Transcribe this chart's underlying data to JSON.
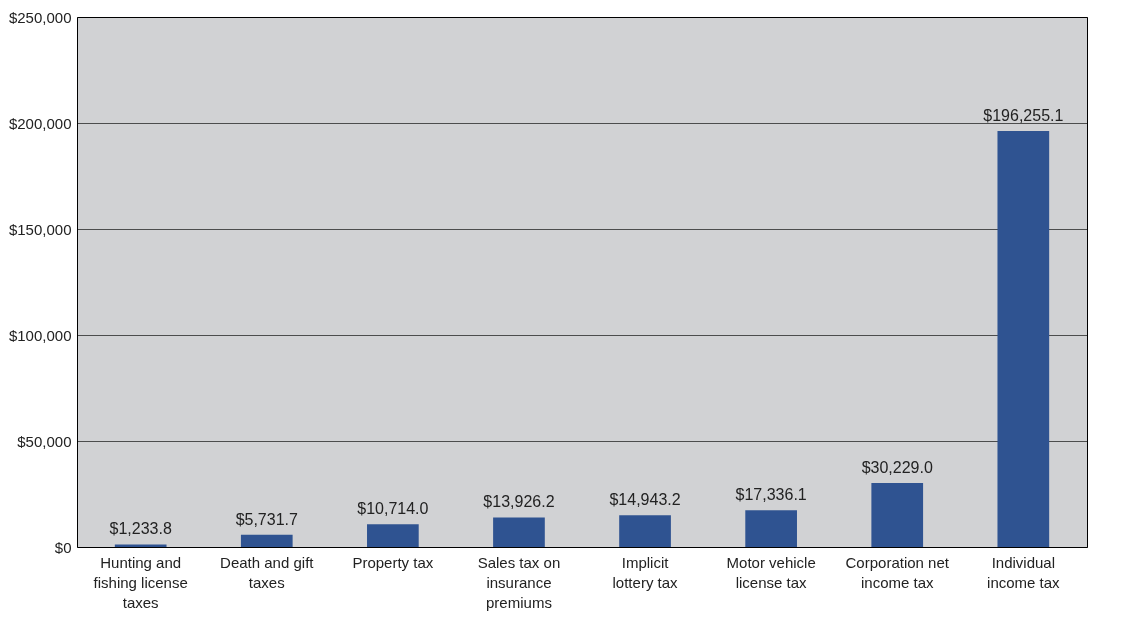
{
  "chart_data": {
    "type": "bar",
    "categories": [
      "Hunting and fishing license taxes",
      "Death and gift taxes",
      "Property tax",
      "Sales tax on insurance premiums",
      "Implicit lottery tax",
      "Motor vehicle license tax",
      "Corporation net income tax",
      "Individual income tax"
    ],
    "values": [
      1233.8,
      5731.7,
      10714.0,
      13926.2,
      14943.2,
      17336.1,
      30229.0,
      196255.1
    ],
    "value_labels": [
      "$1,233.8",
      "$5,731.7",
      "$10,714.0",
      "$13,926.2",
      "$14,943.2",
      "$17,336.1",
      "$30,229.0",
      "$196,255.1"
    ],
    "color": "#2f5391",
    "ylim": [
      0,
      250000
    ],
    "yticks": [
      {
        "value": 0,
        "label": "$0"
      },
      {
        "value": 50000,
        "label": "$50,000"
      },
      {
        "value": 100000,
        "label": "$100,000"
      },
      {
        "value": 150000,
        "label": "$150,000"
      },
      {
        "value": 200000,
        "label": "$200,000"
      },
      {
        "value": 250000,
        "label": "$250,000"
      }
    ],
    "grid": "y"
  }
}
